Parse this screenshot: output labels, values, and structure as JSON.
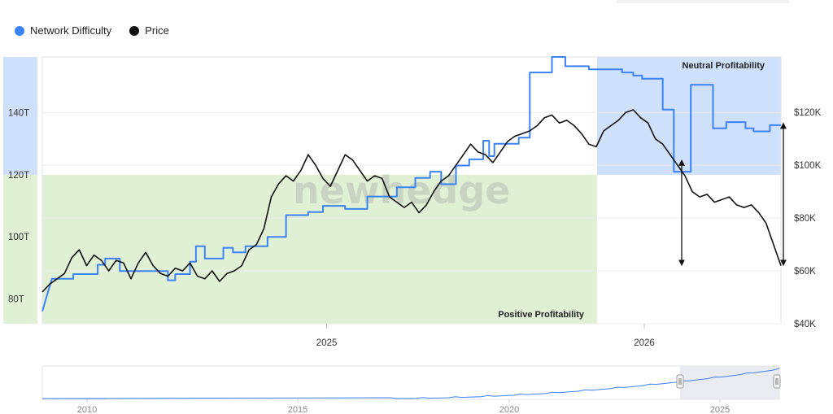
{
  "legend": {
    "items": [
      {
        "label": "Network Difficulty",
        "color": "#3b82f6"
      },
      {
        "label": "Price",
        "color": "#111111"
      }
    ]
  },
  "watermark": "newhedge",
  "chart_data": {
    "type": "line",
    "x_ticks": [
      "2025",
      "2026"
    ],
    "left_axis": {
      "label": "",
      "ticks": [
        "80T",
        "100T",
        "120T",
        "140T"
      ],
      "range": [
        72,
        158
      ]
    },
    "right_axis": {
      "label": "",
      "ticks": [
        "$40K",
        "$60K",
        "$80K",
        "$100K",
        "$120K"
      ],
      "range": [
        40000,
        141000
      ]
    },
    "zones": [
      {
        "label": "Positive Profitability",
        "color": "#dff0d4",
        "axis": "left",
        "from": 72,
        "to": 120
      },
      {
        "label": "Neutral Profitability",
        "color": "#cfe0fb",
        "axis": "left",
        "from": 120,
        "to": 156
      }
    ],
    "series": [
      {
        "name": "Network Difficulty",
        "axis": "left",
        "color": "#3b82f6",
        "points": [
          [
            0,
            76
          ],
          [
            0.013,
            86.5
          ],
          [
            0.042,
            86.5
          ],
          [
            0.042,
            88
          ],
          [
            0.075,
            88
          ],
          [
            0.075,
            91
          ],
          [
            0.085,
            91
          ],
          [
            0.085,
            93
          ],
          [
            0.105,
            93
          ],
          [
            0.105,
            89
          ],
          [
            0.17,
            89
          ],
          [
            0.17,
            86
          ],
          [
            0.18,
            86
          ],
          [
            0.18,
            88
          ],
          [
            0.2,
            88
          ],
          [
            0.2,
            92
          ],
          [
            0.208,
            92
          ],
          [
            0.208,
            97
          ],
          [
            0.22,
            97
          ],
          [
            0.22,
            93
          ],
          [
            0.245,
            93
          ],
          [
            0.245,
            96.5
          ],
          [
            0.258,
            96.5
          ],
          [
            0.258,
            95
          ],
          [
            0.275,
            95
          ],
          [
            0.275,
            97
          ],
          [
            0.305,
            97
          ],
          [
            0.305,
            100
          ],
          [
            0.33,
            100
          ],
          [
            0.33,
            107
          ],
          [
            0.36,
            107
          ],
          [
            0.36,
            108
          ],
          [
            0.38,
            108
          ],
          [
            0.38,
            110
          ],
          [
            0.41,
            110
          ],
          [
            0.41,
            109
          ],
          [
            0.44,
            109
          ],
          [
            0.44,
            113
          ],
          [
            0.48,
            113
          ],
          [
            0.48,
            116
          ],
          [
            0.505,
            116
          ],
          [
            0.505,
            119
          ],
          [
            0.525,
            119
          ],
          [
            0.525,
            121
          ],
          [
            0.54,
            121
          ],
          [
            0.54,
            117
          ],
          [
            0.56,
            117
          ],
          [
            0.56,
            123
          ],
          [
            0.578,
            123
          ],
          [
            0.578,
            125
          ],
          [
            0.597,
            125
          ],
          [
            0.597,
            131
          ],
          [
            0.605,
            131
          ],
          [
            0.605,
            126
          ],
          [
            0.612,
            126
          ],
          [
            0.612,
            130
          ],
          [
            0.645,
            130
          ],
          [
            0.645,
            132
          ],
          [
            0.66,
            132
          ],
          [
            0.66,
            153
          ],
          [
            0.69,
            153
          ],
          [
            0.69,
            158
          ],
          [
            0.708,
            158
          ],
          [
            0.708,
            155
          ],
          [
            0.74,
            155
          ],
          [
            0.74,
            154
          ],
          [
            0.785,
            154
          ],
          [
            0.785,
            153
          ],
          [
            0.8,
            153
          ],
          [
            0.8,
            152
          ],
          [
            0.812,
            152
          ],
          [
            0.812,
            151
          ],
          [
            0.84,
            151
          ],
          [
            0.84,
            141
          ],
          [
            0.855,
            141
          ],
          [
            0.855,
            121
          ],
          [
            0.878,
            121
          ],
          [
            0.878,
            149
          ],
          [
            0.908,
            149
          ],
          [
            0.908,
            135
          ],
          [
            0.926,
            135
          ],
          [
            0.926,
            137
          ],
          [
            0.952,
            137
          ],
          [
            0.952,
            135
          ],
          [
            0.963,
            135
          ],
          [
            0.963,
            134
          ],
          [
            0.985,
            134
          ],
          [
            0.985,
            136
          ],
          [
            1,
            136
          ]
        ]
      },
      {
        "name": "Price",
        "axis": "right",
        "color": "#111111",
        "points": [
          [
            0,
            52000
          ],
          [
            0.01,
            55000
          ],
          [
            0.02,
            57000
          ],
          [
            0.03,
            59000
          ],
          [
            0.04,
            65000
          ],
          [
            0.05,
            68000
          ],
          [
            0.06,
            62000
          ],
          [
            0.07,
            66000
          ],
          [
            0.08,
            64000
          ],
          [
            0.09,
            60000
          ],
          [
            0.1,
            64000
          ],
          [
            0.11,
            63000
          ],
          [
            0.12,
            57000
          ],
          [
            0.13,
            63000
          ],
          [
            0.14,
            67000
          ],
          [
            0.15,
            62000
          ],
          [
            0.16,
            59000
          ],
          [
            0.17,
            58000
          ],
          [
            0.18,
            61000
          ],
          [
            0.19,
            60000
          ],
          [
            0.2,
            63000
          ],
          [
            0.21,
            58000
          ],
          [
            0.22,
            57000
          ],
          [
            0.23,
            60000
          ],
          [
            0.24,
            56000
          ],
          [
            0.25,
            59000
          ],
          [
            0.26,
            60000
          ],
          [
            0.27,
            62000
          ],
          [
            0.28,
            68000
          ],
          [
            0.29,
            70000
          ],
          [
            0.3,
            76000
          ],
          [
            0.31,
            88000
          ],
          [
            0.32,
            93000
          ],
          [
            0.33,
            96000
          ],
          [
            0.34,
            94000
          ],
          [
            0.35,
            98000
          ],
          [
            0.36,
            104000
          ],
          [
            0.37,
            100000
          ],
          [
            0.38,
            95000
          ],
          [
            0.39,
            92000
          ],
          [
            0.4,
            98000
          ],
          [
            0.41,
            104000
          ],
          [
            0.42,
            102000
          ],
          [
            0.43,
            98000
          ],
          [
            0.44,
            94000
          ],
          [
            0.45,
            96000
          ],
          [
            0.46,
            95000
          ],
          [
            0.47,
            88000
          ],
          [
            0.48,
            86000
          ],
          [
            0.49,
            84000
          ],
          [
            0.5,
            86000
          ],
          [
            0.51,
            82000
          ],
          [
            0.52,
            85000
          ],
          [
            0.53,
            90000
          ],
          [
            0.54,
            94000
          ],
          [
            0.55,
            96000
          ],
          [
            0.56,
            100000
          ],
          [
            0.57,
            104000
          ],
          [
            0.58,
            108000
          ],
          [
            0.59,
            105000
          ],
          [
            0.6,
            104000
          ],
          [
            0.61,
            101000
          ],
          [
            0.62,
            105000
          ],
          [
            0.63,
            109000
          ],
          [
            0.64,
            111000
          ],
          [
            0.65,
            112000
          ],
          [
            0.66,
            113000
          ],
          [
            0.67,
            115000
          ],
          [
            0.68,
            118000
          ],
          [
            0.69,
            119000
          ],
          [
            0.7,
            116000
          ],
          [
            0.71,
            117000
          ],
          [
            0.72,
            115000
          ],
          [
            0.73,
            112000
          ],
          [
            0.74,
            108000
          ],
          [
            0.75,
            107000
          ],
          [
            0.76,
            113000
          ],
          [
            0.77,
            115000
          ],
          [
            0.78,
            117000
          ],
          [
            0.79,
            120000
          ],
          [
            0.8,
            121000
          ],
          [
            0.81,
            118000
          ],
          [
            0.82,
            116000
          ],
          [
            0.83,
            110000
          ],
          [
            0.84,
            108000
          ],
          [
            0.85,
            104000
          ],
          [
            0.86,
            100000
          ],
          [
            0.87,
            96000
          ],
          [
            0.88,
            90000
          ],
          [
            0.89,
            88000
          ],
          [
            0.9,
            89000
          ],
          [
            0.91,
            86000
          ],
          [
            0.92,
            87000
          ],
          [
            0.93,
            88000
          ],
          [
            0.94,
            85000
          ],
          [
            0.95,
            84000
          ],
          [
            0.96,
            85000
          ],
          [
            0.97,
            82000
          ],
          [
            0.98,
            78000
          ],
          [
            0.99,
            70000
          ],
          [
            1,
            62000
          ]
        ]
      }
    ],
    "annotations": [
      {
        "type": "double-arrow",
        "x": 0.66,
        "from": 101000,
        "to": 63000
      },
      {
        "type": "double-arrow",
        "x": 1.0,
        "from": 115000,
        "to": 63000
      }
    ],
    "navigator": {
      "ticks": [
        "2010",
        "2015",
        "2020",
        "2025"
      ]
    }
  }
}
